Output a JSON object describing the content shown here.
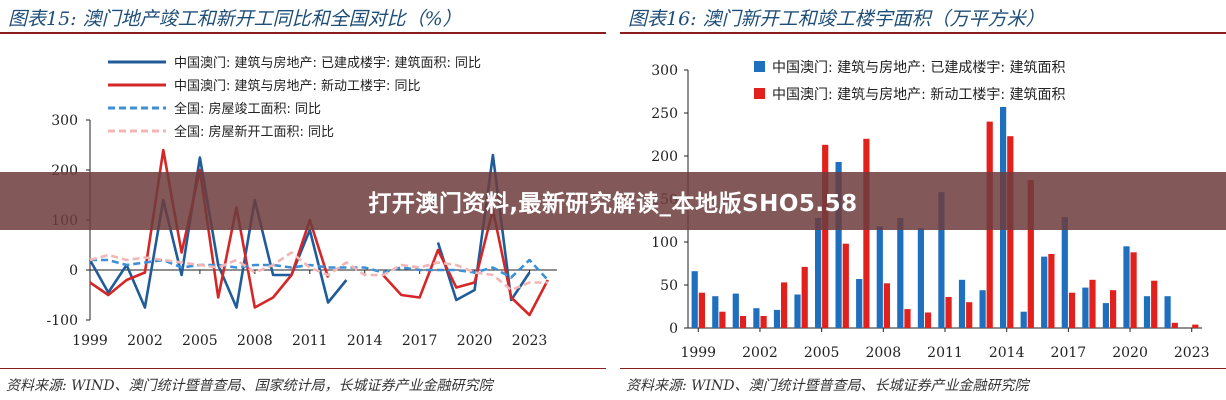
{
  "banner": {
    "text": "打开澳门资料,最新研究解读_本地版SHO5.58"
  },
  "left": {
    "title": "图表15:  澳门地产竣工和新开工同比和全国对比（%）",
    "source": "资料来源: WIND、澳门统计暨普查局、国家统计局，长城证券产业金融研究院"
  },
  "right": {
    "title": "图表16:  澳门新开工和竣工楼宇面积（万平方米）",
    "source": "资料来源: WIND、澳门统计暨普查局、长城证券产业金融研究院"
  },
  "chart_data": [
    {
      "type": "line",
      "x": [
        1999,
        2000,
        2001,
        2002,
        2003,
        2004,
        2005,
        2006,
        2007,
        2008,
        2009,
        2010,
        2011,
        2012,
        2013,
        2014,
        2015,
        2016,
        2017,
        2018,
        2019,
        2020,
        2021,
        2022,
        2023,
        2024
      ],
      "xticks": [
        1999,
        2002,
        2005,
        2008,
        2011,
        2014,
        2017,
        2020,
        2023
      ],
      "ylim": [
        -100,
        300
      ],
      "yticks": [
        -100,
        0,
        100,
        200,
        300
      ],
      "legend_position": "top",
      "series": [
        {
          "name": "中国澳门: 建筑与房地产: 已建成楼宇: 建筑面积: 同比",
          "color": "#1f5c99",
          "dash": "solid",
          "values": [
            20,
            -45,
            10,
            -75,
            140,
            -10,
            225,
            10,
            -75,
            140,
            -10,
            -10,
            80,
            -65,
            -20,
            null,
            null,
            null,
            null,
            55,
            -60,
            -40,
            230,
            -60,
            -5,
            null
          ]
        },
        {
          "name": "中国澳门: 建筑与房地产: 新动工楼宇: 同比",
          "color": "#d62728",
          "dash": "solid",
          "values": [
            -25,
            -50,
            -20,
            -5,
            240,
            35,
            200,
            -55,
            125,
            -75,
            -55,
            -10,
            100,
            -15,
            null,
            null,
            -10,
            -50,
            -55,
            40,
            -35,
            -25,
            120,
            -55,
            -90,
            -20
          ]
        },
        {
          "name": "全国: 房屋竣工面积: 同比",
          "color": "#3d8fd6",
          "dash": "dashed",
          "values": [
            20,
            20,
            10,
            15,
            20,
            5,
            10,
            10,
            5,
            10,
            10,
            5,
            10,
            5,
            5,
            5,
            -5,
            5,
            0,
            0,
            0,
            -5,
            5,
            -15,
            20,
            -20
          ]
        },
        {
          "name": "全国: 房屋新开工面积: 同比",
          "color": "#f2b6b6",
          "dash": "dashed",
          "values": [
            20,
            30,
            20,
            25,
            20,
            15,
            10,
            5,
            20,
            -5,
            10,
            35,
            5,
            -10,
            15,
            -10,
            -10,
            10,
            5,
            15,
            10,
            -5,
            -10,
            -40,
            -25,
            -25
          ]
        }
      ]
    },
    {
      "type": "bar",
      "categories": [
        1999,
        2000,
        2001,
        2002,
        2003,
        2004,
        2005,
        2006,
        2007,
        2008,
        2009,
        2010,
        2011,
        2012,
        2013,
        2014,
        2015,
        2016,
        2017,
        2018,
        2019,
        2020,
        2021,
        2022,
        2023
      ],
      "xticks": [
        1999,
        2002,
        2005,
        2008,
        2011,
        2014,
        2017,
        2020,
        2023
      ],
      "ylim": [
        0,
        300
      ],
      "yticks": [
        0,
        50,
        100,
        150,
        200,
        250,
        300
      ],
      "legend_position": "top",
      "series": [
        {
          "name": "中国澳门: 建筑与房地产: 已建成楼宇: 建筑面积",
          "color": "#1f6fbf",
          "values": [
            66,
            37,
            40,
            23,
            21,
            39,
            128,
            193,
            57,
            118,
            128,
            116,
            158,
            56,
            44,
            257,
            19,
            83,
            129,
            47,
            29,
            95,
            37,
            37,
            null
          ]
        },
        {
          "name": "中国澳门: 建筑与房地产: 新动工楼宇: 建筑面积",
          "color": "#e3211c",
          "values": [
            41,
            19,
            14,
            14,
            53,
            71,
            213,
            98,
            220,
            52,
            22,
            18,
            36,
            30,
            240,
            223,
            172,
            86,
            41,
            56,
            44,
            88,
            55,
            6,
            4
          ]
        }
      ]
    }
  ]
}
